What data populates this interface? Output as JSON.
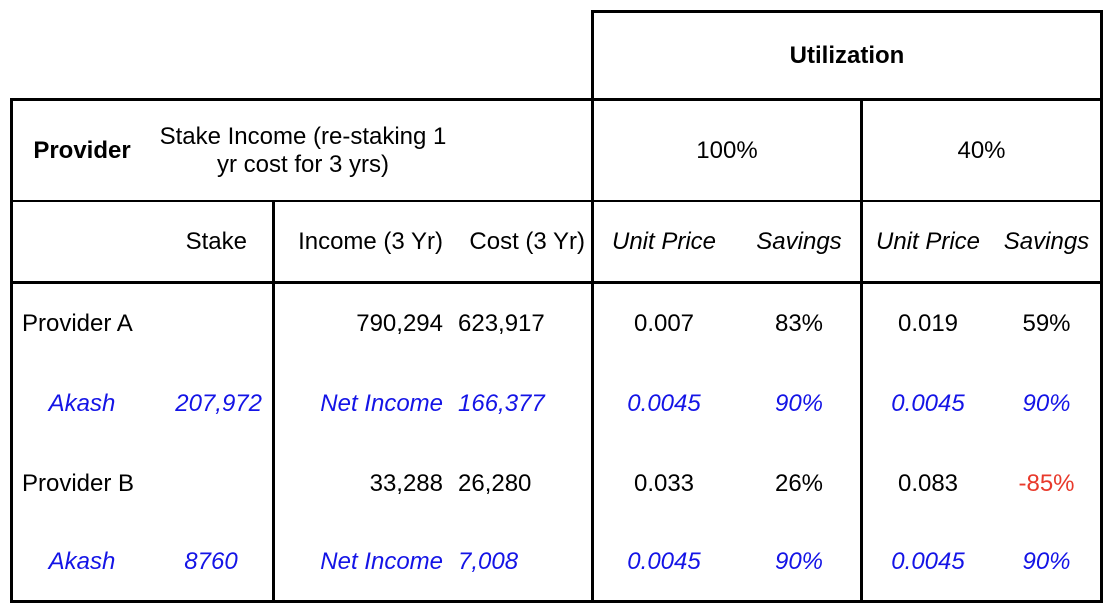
{
  "header": {
    "utilization": "Utilization",
    "provider": "Provider",
    "stake_income": "Stake Income (re-staking 1 yr cost for 3 yrs)",
    "util_100": "100%",
    "util_40": "40%"
  },
  "columns": {
    "stake": "Stake",
    "income": "Income (3 Yr)",
    "cost": "Cost (3 Yr)",
    "unit_price_100": "Unit Price",
    "savings_100": "Savings",
    "unit_price_40": "Unit Price",
    "savings_40": "Savings"
  },
  "rows": [
    {
      "provider": "Provider A",
      "stake": "",
      "income": "790,294",
      "cost": "623,917",
      "up100": "0.007",
      "sv100": "83%",
      "up40": "0.019",
      "sv40": "59%"
    },
    {
      "provider": "Akash",
      "stake": "207,972",
      "income": "Net Income",
      "cost": "166,377",
      "up100": "0.0045",
      "sv100": "90%",
      "up40": "0.0045",
      "sv40": "90%"
    },
    {
      "provider": "Provider B",
      "stake": "",
      "income": "33,288",
      "cost": "26,280",
      "up100": "0.033",
      "sv100": "26%",
      "up40": "0.083",
      "sv40": "-85%"
    },
    {
      "provider": "Akash",
      "stake": "8760",
      "income": "Net Income",
      "cost": "7,008",
      "up100": "0.0045",
      "sv100": "90%",
      "up40": "0.0045",
      "sv40": "90%"
    }
  ],
  "colors": {
    "akash_text": "#1414e6",
    "negative": "#e8392b",
    "border": "#000000"
  }
}
